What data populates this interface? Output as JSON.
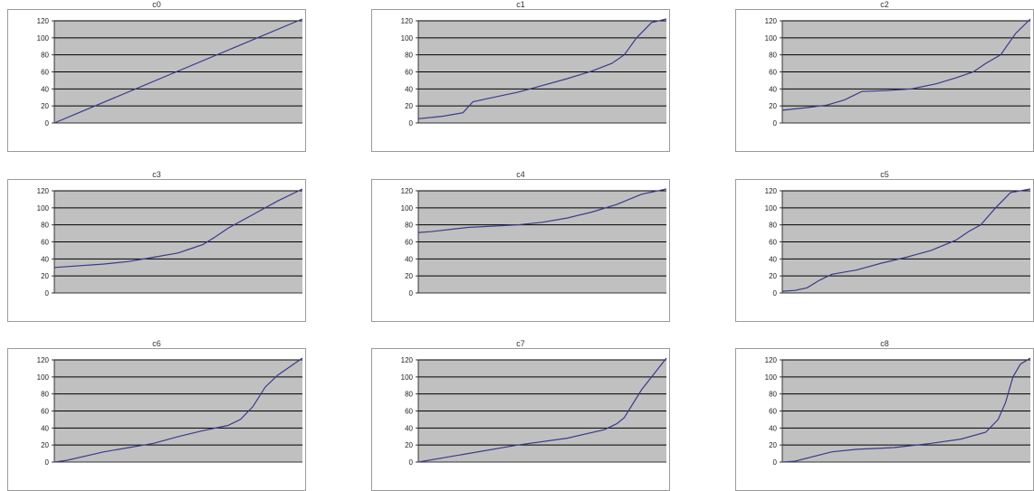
{
  "colors": {
    "plot_bg": "#c0c0c0",
    "grid": "#000000",
    "line": "#3a3a8c",
    "frame": "#9a9a9a"
  },
  "chart_data": [
    {
      "type": "line",
      "title": "c0",
      "ylim": [
        0,
        120
      ],
      "yticks": [
        "120",
        "100",
        "80",
        "60",
        "40",
        "20",
        "0"
      ],
      "x": [
        0,
        1
      ],
      "values": [
        0,
        125
      ],
      "grid": true
    },
    {
      "type": "line",
      "title": "c1",
      "ylim": [
        0,
        120
      ],
      "yticks": [
        "120",
        "100",
        "80",
        "60",
        "40",
        "20",
        "0"
      ],
      "x": [
        0,
        0.1,
        0.18,
        0.22,
        0.3,
        0.4,
        0.5,
        0.6,
        0.7,
        0.78,
        0.83,
        0.88,
        0.94,
        1
      ],
      "values": [
        5,
        8,
        12,
        25,
        30,
        36,
        44,
        52,
        61,
        70,
        80,
        100,
        118,
        125
      ],
      "grid": true
    },
    {
      "type": "line",
      "title": "c2",
      "ylim": [
        0,
        120
      ],
      "yticks": [
        "120",
        "100",
        "80",
        "60",
        "40",
        "20",
        "0"
      ],
      "x": [
        0,
        0.1,
        0.18,
        0.25,
        0.32,
        0.42,
        0.52,
        0.62,
        0.7,
        0.77,
        0.82,
        0.88,
        0.94,
        1
      ],
      "values": [
        15,
        18,
        21,
        27,
        37,
        38,
        40,
        46,
        53,
        60,
        70,
        80,
        105,
        125
      ],
      "grid": true
    },
    {
      "type": "line",
      "title": "c3",
      "ylim": [
        0,
        120
      ],
      "yticks": [
        "120",
        "100",
        "80",
        "60",
        "40",
        "20",
        "0"
      ],
      "x": [
        0,
        0.2,
        0.3,
        0.4,
        0.5,
        0.55,
        0.6,
        0.65,
        0.7,
        0.8,
        0.9,
        1
      ],
      "values": [
        30,
        34,
        37,
        42,
        47,
        52,
        57,
        66,
        76,
        92,
        108,
        125
      ],
      "grid": true
    },
    {
      "type": "line",
      "title": "c4",
      "ylim": [
        0,
        120
      ],
      "yticks": [
        "120",
        "100",
        "80",
        "60",
        "40",
        "20",
        "0"
      ],
      "x": [
        0,
        0.05,
        0.2,
        0.4,
        0.5,
        0.6,
        0.7,
        0.8,
        0.9,
        1
      ],
      "values": [
        71,
        72,
        77,
        80,
        83,
        88,
        95,
        104,
        116,
        125
      ],
      "grid": true
    },
    {
      "type": "line",
      "title": "c5",
      "ylim": [
        0,
        120
      ],
      "yticks": [
        "120",
        "100",
        "80",
        "60",
        "40",
        "20",
        "0"
      ],
      "x": [
        0,
        0.05,
        0.1,
        0.15,
        0.2,
        0.3,
        0.4,
        0.5,
        0.6,
        0.7,
        0.75,
        0.8,
        0.86,
        0.92,
        1
      ],
      "values": [
        2,
        3,
        6,
        15,
        22,
        27,
        35,
        42,
        50,
        62,
        72,
        80,
        100,
        118,
        125
      ],
      "grid": true
    },
    {
      "type": "line",
      "title": "c6",
      "ylim": [
        0,
        120
      ],
      "yticks": [
        "120",
        "100",
        "80",
        "60",
        "40",
        "20",
        "0"
      ],
      "x": [
        0,
        0.05,
        0.2,
        0.3,
        0.4,
        0.5,
        0.6,
        0.7,
        0.75,
        0.8,
        0.85,
        0.9,
        1
      ],
      "values": [
        0,
        2,
        12,
        17,
        22,
        30,
        37,
        43,
        50,
        65,
        88,
        102,
        125
      ],
      "grid": true
    },
    {
      "type": "line",
      "title": "c7",
      "ylim": [
        0,
        120
      ],
      "yticks": [
        "120",
        "100",
        "80",
        "60",
        "40",
        "20",
        "0"
      ],
      "x": [
        0,
        0.2,
        0.4,
        0.6,
        0.75,
        0.8,
        0.83,
        0.9,
        1
      ],
      "values": [
        0,
        10,
        20,
        28,
        38,
        45,
        52,
        85,
        125
      ],
      "grid": true
    },
    {
      "type": "line",
      "title": "c8",
      "ylim": [
        0,
        120
      ],
      "yticks": [
        "120",
        "100",
        "80",
        "60",
        "40",
        "20",
        "0"
      ],
      "x": [
        0,
        0.05,
        0.2,
        0.3,
        0.45,
        0.6,
        0.72,
        0.82,
        0.87,
        0.9,
        0.93,
        0.96,
        1
      ],
      "values": [
        0,
        1,
        12,
        15,
        17,
        22,
        27,
        35,
        50,
        70,
        100,
        115,
        125
      ],
      "grid": true
    }
  ]
}
